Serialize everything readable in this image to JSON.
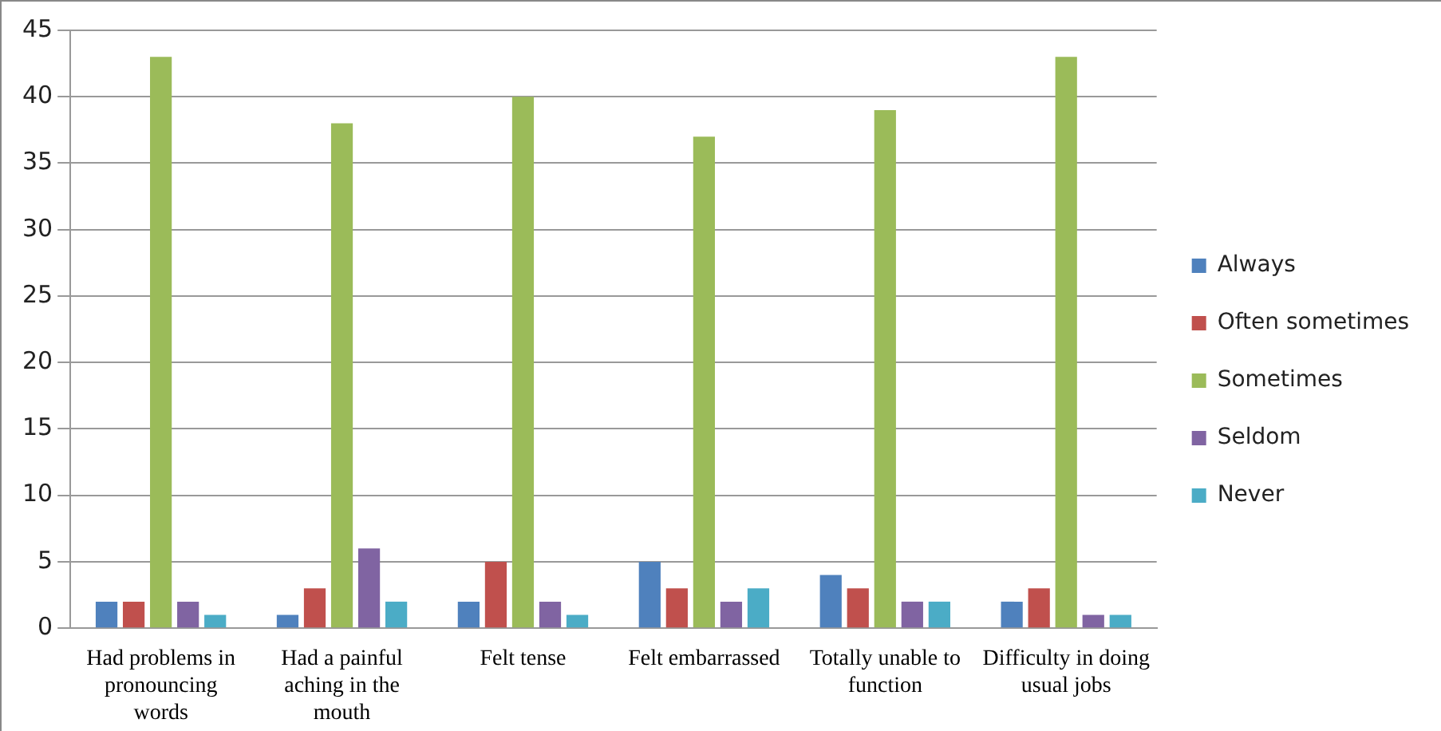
{
  "chart_data": {
    "type": "bar",
    "categories": [
      "Had problems in pronouncing words",
      "Had a painful aching in the mouth",
      "Felt tense",
      "Felt embarrassed",
      "Totally unable to function",
      "Difficulty in doing usual jobs"
    ],
    "series": [
      {
        "name": "Always",
        "color": "#4f81bd",
        "values": [
          2,
          1,
          2,
          5,
          4,
          2
        ]
      },
      {
        "name": "Often sometimes",
        "color": "#c0504d",
        "values": [
          2,
          3,
          5,
          3,
          3,
          3
        ]
      },
      {
        "name": "Sometimes",
        "color": "#9bbb59",
        "values": [
          43,
          38,
          40,
          37,
          39,
          43
        ]
      },
      {
        "name": "Seldom",
        "color": "#8064a2",
        "values": [
          2,
          6,
          2,
          2,
          2,
          1
        ]
      },
      {
        "name": "Never",
        "color": "#4bacc6",
        "values": [
          1,
          2,
          1,
          3,
          2,
          1
        ]
      }
    ],
    "ylim": [
      0,
      45
    ],
    "yticks": [
      0,
      5,
      10,
      15,
      20,
      25,
      30,
      35,
      40,
      45
    ],
    "grid": "y",
    "legend": "right"
  }
}
